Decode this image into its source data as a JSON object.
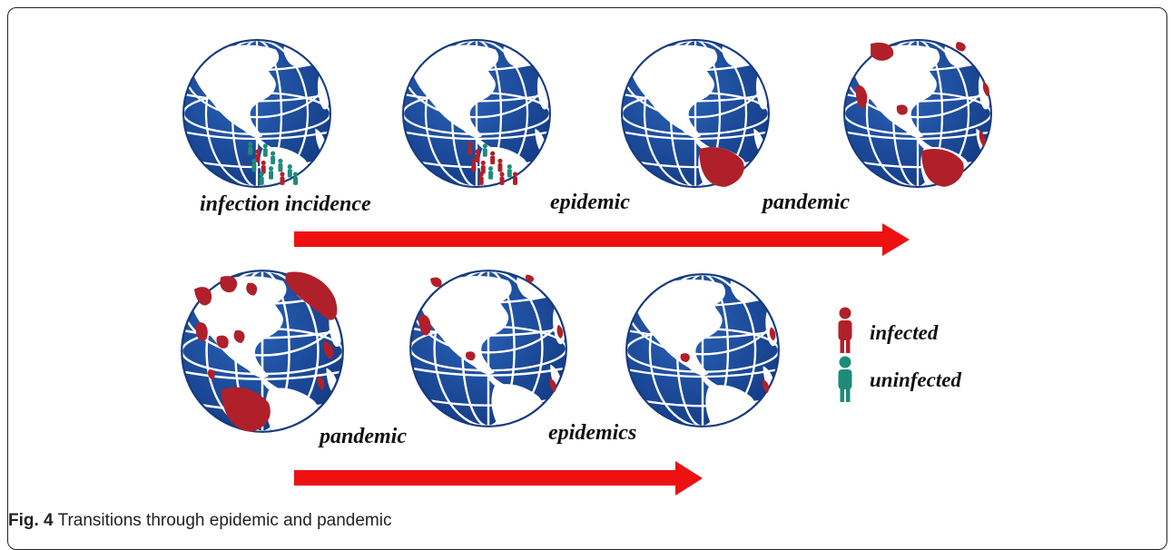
{
  "figure": {
    "stage_labels_top": [
      "infection incidence",
      "epidemic",
      "pandemic"
    ],
    "stage_labels_bottom": [
      "pandemic",
      "epidemics"
    ],
    "legend": {
      "infected": "infected",
      "uninfected": "uninfected"
    },
    "caption_prefix": "Fig. 4",
    "caption_text": "Transitions through epidemic and pandemic"
  },
  "colors": {
    "ocean": "#1d4e9e",
    "grid": "#ffffff",
    "land": "#ffffff",
    "infected": "#b0202a",
    "uninfected": "#1e8b7a",
    "arrow": "#ee1111"
  }
}
